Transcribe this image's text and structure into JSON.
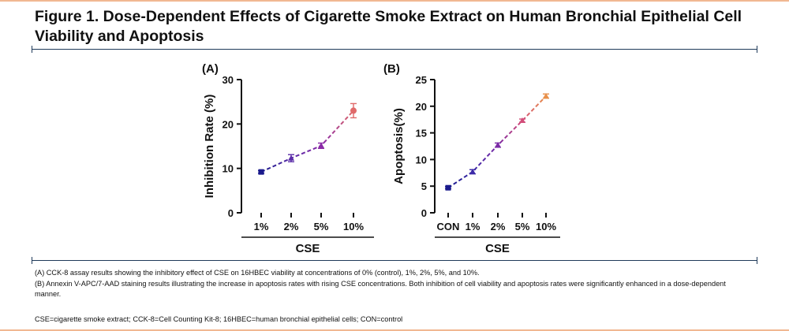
{
  "figure": {
    "title": "Figure 1. Dose-Dependent Effects of Cigarette Smoke Extract on Human Bronchial Epithelial Cell Viability and Apoptosis",
    "caption_a": "(A) CCK-8 assay results showing the inhibitory effect of CSE on 16HBEC viability at concentrations of 0% (control), 1%, 2%, 5%, and 10%.",
    "caption_b": "(B) Annexin V-APC/7-AAD staining results illustrating the increase in apoptosis rates with rising CSE concentrations. Both inhibition of cell viability and apoptosis rates were significantly enhanced in a dose-dependent manner.",
    "abbreviations": "CSE=cigarette smoke extract; CCK-8=Cell Counting Kit-8; 16HBEC=human bronchial epithelial cells; CON=control"
  },
  "colors": {
    "frame_accent": "#f1b892",
    "rule": "#1f3a5a",
    "axis": "#111111"
  },
  "chart_data": [
    {
      "type": "line",
      "panel_label": "(A)",
      "xlabel": "CSE",
      "ylabel": "Inhibition Rate (%)",
      "categories": [
        "1%",
        "2%",
        "5%",
        "10%"
      ],
      "ylim": [
        0,
        30
      ],
      "yticks": [
        0,
        10,
        20,
        30
      ],
      "grid": false,
      "line_style": "dashed",
      "series": [
        {
          "values": [
            9.2,
            12.3,
            15.1,
            23.0
          ],
          "errors": [
            0.3,
            0.8,
            0.6,
            1.6
          ],
          "point_colors": [
            "#1a1a8c",
            "#5a2ca8",
            "#8a2aa6",
            "#e06a6a"
          ]
        }
      ]
    },
    {
      "type": "line",
      "panel_label": "(B)",
      "xlabel": "CSE",
      "ylabel": "Apoptosis(%)",
      "categories": [
        "CON",
        "1%",
        "2%",
        "5%",
        "10%"
      ],
      "ylim": [
        0,
        25
      ],
      "yticks": [
        0,
        5,
        10,
        15,
        20,
        25
      ],
      "grid": false,
      "line_style": "dashed",
      "series": [
        {
          "values": [
            4.7,
            7.7,
            12.7,
            17.3,
            21.9
          ],
          "errors": [
            0.2,
            0.4,
            0.4,
            0.3,
            0.4
          ],
          "point_colors": [
            "#1a1a8c",
            "#3c2aa8",
            "#7a2aa6",
            "#d24e7a",
            "#e8904a"
          ]
        }
      ]
    }
  ]
}
